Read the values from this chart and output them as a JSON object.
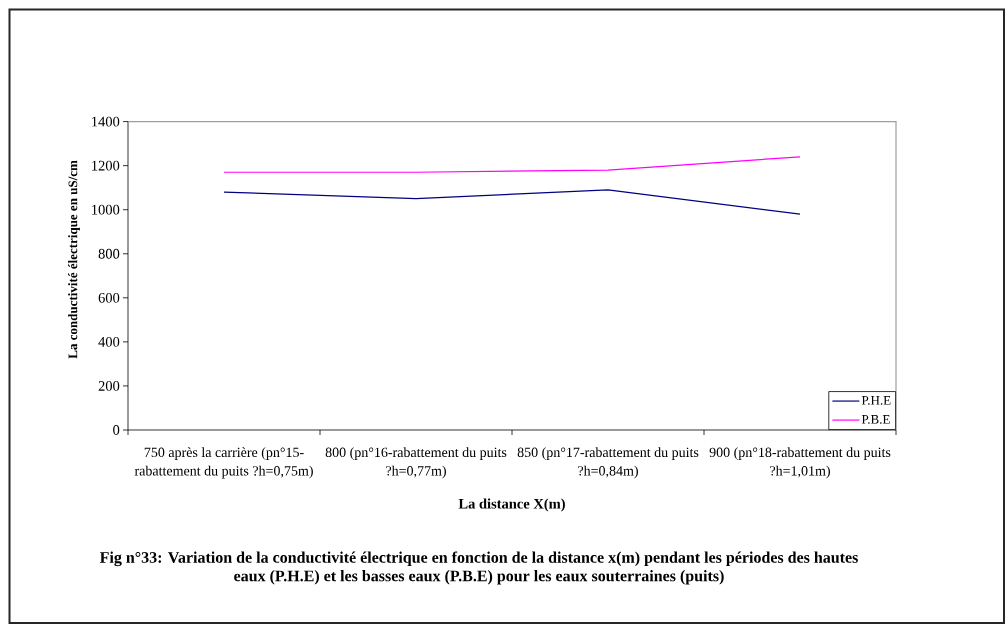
{
  "chart_data": {
    "type": "line",
    "xlabel": "La distance X(m)",
    "ylabel": "La conductivité électrique en uS/cm",
    "annotations": [
      "Fig n°33: Variation de la conductivité électrique en fonction de la distance x(m) pendant les périodes des hautes eaux (P.H.E) et les basses eaux (P.B.E) pour les eaux souterraines (puits)"
    ],
    "categories": [
      "750 après la carrière (pn°15-rabattement du puits ?h=0,75m)",
      "800 (pn°16-rabattement du puits ?h=0,77m)",
      "850 (pn°17-rabattement du puits ?h=0,84m)",
      "900 (pn°18-rabattement du puits ?h=1,01m)"
    ],
    "series": [
      {
        "name": "P.H.E",
        "color": "#000080",
        "values": [
          1080,
          1050,
          1090,
          980
        ]
      },
      {
        "name": "P.B.E",
        "color": "#ff00ff",
        "values": [
          1170,
          1170,
          1180,
          1240
        ]
      }
    ],
    "ylim": [
      0,
      1400
    ],
    "yticks": [
      0,
      200,
      400,
      600,
      800,
      1000,
      1200,
      1400
    ],
    "legend": "bottom right",
    "marker": "none",
    "line_style": "solid"
  }
}
